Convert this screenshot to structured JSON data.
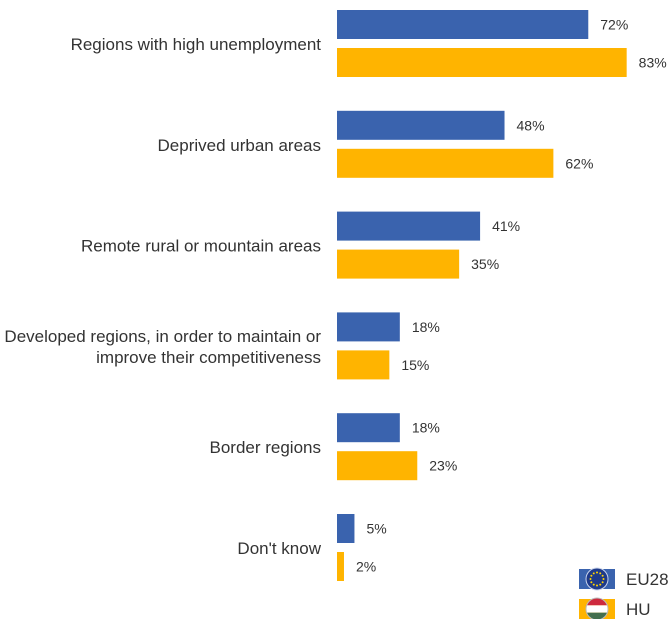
{
  "chart_data": {
    "type": "bar",
    "orientation": "horizontal",
    "categories": [
      [
        "Regions with high unemployment"
      ],
      [
        "Deprived urban areas"
      ],
      [
        "Remote rural or mountain areas"
      ],
      [
        "Developed regions, in order to maintain or",
        "improve their competitiveness"
      ],
      [
        "Border regions"
      ],
      [
        "Don't know"
      ]
    ],
    "series": [
      {
        "name": "EU28",
        "color": "#3a63ae",
        "icon": "eu-flag-icon",
        "values": [
          72,
          48,
          41,
          18,
          18,
          5
        ],
        "labels": [
          "72%",
          "48%",
          "41%",
          "18%",
          "18%",
          "5%"
        ]
      },
      {
        "name": "HU",
        "color": "#ffb400",
        "icon": "hungary-flag-icon",
        "values": [
          83,
          62,
          35,
          15,
          23,
          2
        ],
        "labels": [
          "83%",
          "62%",
          "35%",
          "15%",
          "23%",
          "2%"
        ]
      }
    ],
    "unit": "%",
    "legend_position": "bottom-right",
    "grid": false
  }
}
